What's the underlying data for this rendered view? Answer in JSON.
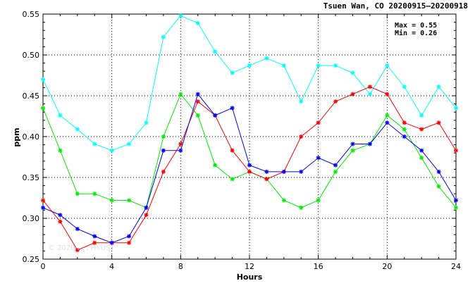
{
  "chart_data": {
    "type": "line",
    "title": "Tsuen Wan, CO 20200915—20200918",
    "xlabel": "Hours",
    "ylabel": "ppm",
    "xlim": [
      0,
      24
    ],
    "ylim": [
      0.25,
      0.55
    ],
    "x_ticks": [
      0,
      4,
      8,
      12,
      16,
      20,
      24
    ],
    "y_ticks": [
      0.25,
      0.3,
      0.35,
      0.4,
      0.45,
      0.5,
      0.55
    ],
    "grid": true,
    "annotations": {
      "max": "Max = 0.55",
      "min": "Min = 0.26"
    },
    "watermark": "© 2020 ... , HKUST",
    "x": [
      0,
      1,
      2,
      3,
      4,
      5,
      6,
      7,
      8,
      9,
      10,
      11,
      12,
      13,
      14,
      15,
      16,
      17,
      18,
      19,
      20,
      21,
      22,
      23,
      24
    ],
    "series": [
      {
        "color": "#00ffff",
        "marker": "star",
        "values": [
          0.47,
          0.426,
          0.409,
          0.391,
          0.383,
          0.391,
          0.417,
          0.522,
          0.548,
          0.539,
          0.504,
          0.478,
          0.487,
          0.496,
          0.487,
          0.443,
          0.487,
          0.487,
          0.478,
          0.452,
          0.487,
          0.461,
          0.426,
          0.461,
          0.435
        ]
      },
      {
        "color": "#00ee00",
        "marker": "star",
        "values": [
          0.435,
          0.383,
          0.33,
          0.33,
          0.322,
          0.322,
          0.313,
          0.4,
          0.452,
          0.426,
          0.365,
          0.348,
          0.357,
          0.348,
          0.322,
          0.313,
          0.322,
          0.357,
          0.383,
          0.391,
          0.426,
          0.409,
          0.374,
          0.339,
          0.313
        ]
      },
      {
        "color": "#ff0000",
        "marker": "star",
        "values": [
          0.322,
          0.296,
          0.261,
          0.27,
          0.27,
          0.27,
          0.304,
          0.357,
          0.391,
          0.443,
          0.426,
          0.383,
          0.357,
          0.348,
          0.357,
          0.4,
          0.417,
          0.443,
          0.452,
          0.461,
          0.452,
          0.417,
          0.409,
          0.417,
          0.383
        ]
      },
      {
        "color": "#0000ff",
        "marker": "star",
        "values": [
          0.313,
          0.304,
          0.287,
          0.278,
          0.27,
          0.278,
          0.313,
          0.383,
          0.383,
          0.452,
          0.426,
          0.435,
          0.365,
          0.357,
          0.357,
          0.357,
          0.374,
          0.365,
          0.391,
          0.391,
          0.417,
          0.4,
          0.383,
          0.357,
          0.322
        ]
      }
    ]
  }
}
